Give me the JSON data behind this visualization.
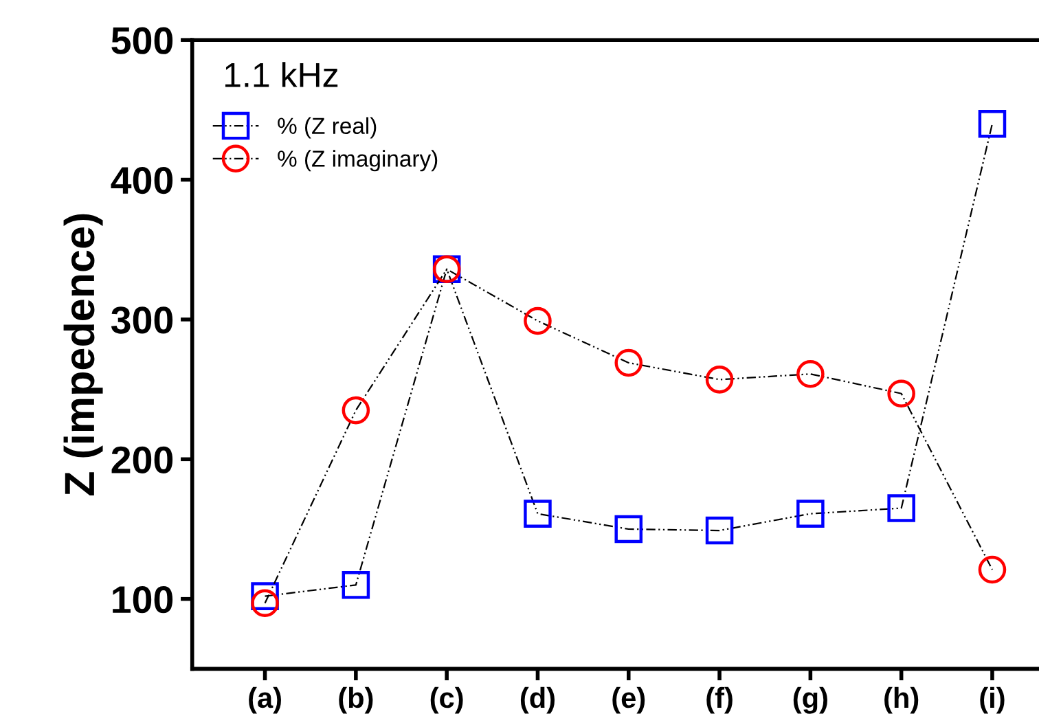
{
  "chart_data": {
    "type": "line",
    "ylabel": "Z (impedence)",
    "annotations": [
      "1.1 kHz"
    ],
    "categories": [
      "(a)",
      "(b)",
      "(c)",
      "(d)",
      "(e)",
      "(f)",
      "(g)",
      "(h)",
      "(i)"
    ],
    "series": [
      {
        "name": "% (Z real)",
        "color": "#0000ff",
        "marker": "square",
        "values": [
          102,
          110,
          336,
          161,
          150,
          149,
          161,
          165,
          440
        ]
      },
      {
        "name": "% (Z imaginary)",
        "color": "#ff0000",
        "marker": "circle",
        "values": [
          97,
          235,
          336,
          299,
          269,
          257,
          261,
          247,
          121
        ]
      }
    ],
    "ylim": [
      50,
      500
    ],
    "yticks": [
      100,
      200,
      300,
      400,
      500
    ],
    "grid": false,
    "legend": "top left",
    "line_style": "dashdot"
  }
}
